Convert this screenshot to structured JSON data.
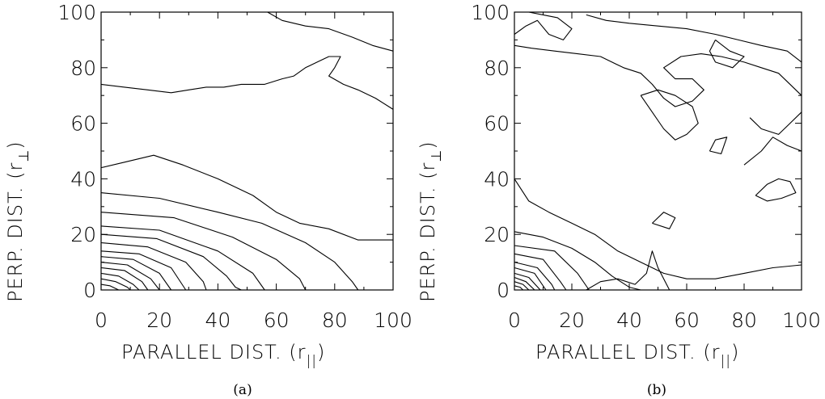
{
  "chart_data": [
    {
      "type": "contour",
      "panel_label": "(a)",
      "xlabel": "PARALLEL DIST. (r",
      "xlabel_sub": "||",
      "ylabel": "PERP. DIST. (r",
      "ylabel_sub": "⊥",
      "xlim": [
        0,
        100
      ],
      "ylim": [
        0,
        100
      ],
      "xticks": [
        "0",
        "20",
        "40",
        "60",
        "80",
        "100"
      ],
      "yticks": [
        "0",
        "20",
        "40",
        "60",
        "80",
        "100"
      ],
      "contours": [
        [
          [
            0,
            2
          ],
          [
            3,
            1.5
          ],
          [
            6,
            0
          ]
        ],
        [
          [
            0,
            4
          ],
          [
            5,
            3
          ],
          [
            9,
            1
          ],
          [
            10,
            0
          ]
        ],
        [
          [
            0,
            6
          ],
          [
            6,
            5
          ],
          [
            11,
            2
          ],
          [
            13,
            0
          ]
        ],
        [
          [
            0,
            8
          ],
          [
            8,
            7
          ],
          [
            14,
            3
          ],
          [
            16,
            0
          ]
        ],
        [
          [
            0,
            10
          ],
          [
            9,
            9
          ],
          [
            17,
            4
          ],
          [
            20,
            0
          ]
        ],
        [
          [
            0,
            12
          ],
          [
            11,
            11
          ],
          [
            20,
            6
          ],
          [
            24,
            0
          ]
        ],
        [
          [
            0,
            14
          ],
          [
            13,
            13
          ],
          [
            24,
            8
          ],
          [
            29,
            0
          ]
        ],
        [
          [
            0,
            17
          ],
          [
            16,
            15.5
          ],
          [
            29,
            10
          ],
          [
            35,
            3
          ],
          [
            36,
            0
          ]
        ],
        [
          [
            0,
            20
          ],
          [
            19,
            18.5
          ],
          [
            35,
            12
          ],
          [
            43,
            5
          ],
          [
            46,
            1
          ],
          [
            48,
            0
          ]
        ],
        [
          [
            0,
            23
          ],
          [
            20,
            21.5
          ],
          [
            40,
            14
          ],
          [
            52,
            6
          ],
          [
            56,
            0
          ]
        ],
        [
          [
            0,
            28
          ],
          [
            25,
            26
          ],
          [
            45,
            19
          ],
          [
            60,
            11
          ],
          [
            68,
            4
          ],
          [
            70,
            0
          ]
        ],
        [
          [
            0,
            35
          ],
          [
            20,
            33
          ],
          [
            40,
            28
          ],
          [
            55,
            24
          ],
          [
            70,
            17
          ],
          [
            80,
            10
          ],
          [
            86,
            3
          ],
          [
            88,
            0
          ]
        ],
        [
          [
            0,
            44
          ],
          [
            8,
            46
          ],
          [
            18,
            48.5
          ],
          [
            28,
            45
          ],
          [
            40,
            40
          ],
          [
            52,
            34
          ],
          [
            60,
            28
          ],
          [
            68,
            24
          ],
          [
            78,
            22
          ],
          [
            88,
            18
          ],
          [
            100,
            18
          ]
        ],
        [
          [
            0,
            74
          ],
          [
            8,
            73
          ],
          [
            16,
            72
          ],
          [
            24,
            71
          ],
          [
            30,
            72
          ],
          [
            36,
            73
          ],
          [
            42,
            73
          ],
          [
            48,
            74
          ],
          [
            56,
            74
          ],
          [
            62,
            76
          ],
          [
            66,
            77
          ],
          [
            70,
            80
          ],
          [
            74,
            82
          ],
          [
            78,
            84
          ],
          [
            82,
            84
          ],
          [
            80,
            80
          ],
          [
            78,
            77
          ],
          [
            83,
            74
          ],
          [
            88,
            72
          ],
          [
            94,
            69
          ],
          [
            100,
            65
          ]
        ],
        [
          [
            57,
            100
          ],
          [
            62,
            97
          ],
          [
            70,
            95
          ],
          [
            78,
            94
          ],
          [
            86,
            91
          ],
          [
            93,
            88
          ],
          [
            100,
            86
          ]
        ]
      ]
    },
    {
      "type": "contour",
      "panel_label": "(b)",
      "xlabel": "PARALLEL DIST. (r",
      "xlabel_sub": "||",
      "ylabel": "PERP. DIST. (r",
      "ylabel_sub": "⊥",
      "xlim": [
        0,
        100
      ],
      "ylim": [
        0,
        100
      ],
      "xticks": [
        "0",
        "20",
        "40",
        "60",
        "80",
        "100"
      ],
      "yticks": [
        "0",
        "20",
        "40",
        "60",
        "80",
        "100"
      ],
      "contours": [
        [
          [
            0,
            1.5
          ],
          [
            2,
            1
          ],
          [
            3,
            0
          ]
        ],
        [
          [
            0,
            3
          ],
          [
            3,
            2
          ],
          [
            5,
            0
          ]
        ],
        [
          [
            0,
            4.5
          ],
          [
            4,
            3
          ],
          [
            7,
            0
          ]
        ],
        [
          [
            0,
            6
          ],
          [
            5,
            4.5
          ],
          [
            9,
            0
          ]
        ],
        [
          [
            0,
            8
          ],
          [
            7,
            6
          ],
          [
            11,
            0
          ]
        ],
        [
          [
            0,
            10
          ],
          [
            8,
            8
          ],
          [
            13,
            2
          ],
          [
            14,
            0
          ]
        ],
        [
          [
            0,
            13
          ],
          [
            10,
            11
          ],
          [
            16,
            3
          ],
          [
            18,
            0
          ]
        ],
        [
          [
            0,
            16
          ],
          [
            14,
            14
          ],
          [
            22,
            6
          ],
          [
            26,
            0
          ]
        ],
        [
          [
            0,
            21
          ],
          [
            10,
            19
          ],
          [
            20,
            15
          ],
          [
            28,
            10
          ],
          [
            34,
            5
          ],
          [
            40,
            1
          ],
          [
            44,
            0
          ]
        ],
        [
          [
            0,
            40
          ],
          [
            5,
            32
          ],
          [
            12,
            28
          ],
          [
            20,
            24
          ],
          [
            28,
            20
          ],
          [
            36,
            14
          ],
          [
            44,
            10
          ],
          [
            52,
            6
          ],
          [
            60,
            4
          ],
          [
            70,
            4
          ],
          [
            80,
            6
          ],
          [
            90,
            8
          ],
          [
            100,
            9
          ]
        ],
        [
          [
            25,
            0
          ],
          [
            30,
            3
          ],
          [
            36,
            4
          ],
          [
            42,
            2
          ],
          [
            46,
            6
          ],
          [
            48,
            14
          ],
          [
            50,
            8
          ],
          [
            54,
            0
          ]
        ],
        [
          [
            0,
            92
          ],
          [
            4,
            95
          ],
          [
            8,
            97
          ],
          [
            12,
            92
          ],
          [
            17,
            90
          ],
          [
            20,
            94
          ],
          [
            15,
            98
          ],
          [
            10,
            99
          ],
          [
            5,
            100
          ]
        ],
        [
          [
            25,
            99
          ],
          [
            32,
            97
          ],
          [
            40,
            96
          ],
          [
            50,
            95
          ],
          [
            60,
            94
          ],
          [
            70,
            92
          ],
          [
            78,
            90
          ],
          [
            86,
            88
          ],
          [
            95,
            86
          ],
          [
            100,
            82
          ]
        ],
        [
          [
            0,
            88
          ],
          [
            6,
            87
          ],
          [
            14,
            86
          ],
          [
            22,
            85
          ],
          [
            30,
            84
          ],
          [
            38,
            80
          ],
          [
            44,
            78
          ],
          [
            48,
            74
          ],
          [
            52,
            69
          ],
          [
            56,
            66
          ],
          [
            62,
            68
          ],
          [
            66,
            72
          ],
          [
            62,
            76
          ],
          [
            56,
            76
          ],
          [
            52,
            80
          ],
          [
            58,
            84
          ],
          [
            65,
            85
          ],
          [
            72,
            84
          ],
          [
            80,
            82
          ],
          [
            86,
            80
          ],
          [
            92,
            78
          ],
          [
            100,
            70
          ]
        ],
        [
          [
            44,
            70
          ],
          [
            48,
            64
          ],
          [
            52,
            58
          ],
          [
            56,
            54
          ],
          [
            60,
            56
          ],
          [
            64,
            60
          ],
          [
            62,
            66
          ],
          [
            56,
            70
          ],
          [
            50,
            72
          ],
          [
            44,
            70
          ]
        ],
        [
          [
            68,
            50
          ],
          [
            70,
            54
          ],
          [
            74,
            55
          ],
          [
            72,
            49
          ],
          [
            68,
            50
          ]
        ],
        [
          [
            82,
            62
          ],
          [
            86,
            58
          ],
          [
            92,
            56
          ],
          [
            96,
            60
          ],
          [
            100,
            64
          ]
        ],
        [
          [
            80,
            45
          ],
          [
            86,
            50
          ],
          [
            90,
            55
          ],
          [
            95,
            52
          ],
          [
            100,
            50
          ]
        ],
        [
          [
            84,
            34
          ],
          [
            88,
            38
          ],
          [
            92,
            40
          ],
          [
            96,
            39
          ],
          [
            98,
            35
          ],
          [
            93,
            33
          ],
          [
            88,
            32
          ],
          [
            84,
            34
          ]
        ],
        [
          [
            70,
            90
          ],
          [
            75,
            86
          ],
          [
            80,
            84
          ],
          [
            76,
            80
          ],
          [
            70,
            82
          ],
          [
            68,
            86
          ],
          [
            70,
            90
          ]
        ],
        [
          [
            48,
            24
          ],
          [
            52,
            28
          ],
          [
            56,
            26
          ],
          [
            54,
            22
          ],
          [
            48,
            24
          ]
        ]
      ]
    }
  ]
}
